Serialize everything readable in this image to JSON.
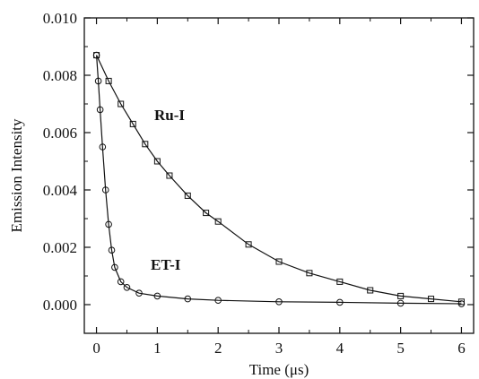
{
  "chart_data": {
    "type": "scatter",
    "title": "",
    "xlabel": "Time (μs)",
    "ylabel": "Emission Intensity",
    "xlim": [
      -0.2,
      6.2
    ],
    "ylim": [
      -0.001,
      0.01
    ],
    "x_ticks": [
      0,
      1,
      2,
      3,
      4,
      5,
      6
    ],
    "x_tick_labels": [
      "0",
      "1",
      "2",
      "3",
      "4",
      "5",
      "6"
    ],
    "y_ticks": [
      0,
      0.002,
      0.004,
      0.006,
      0.008,
      0.01
    ],
    "y_tick_labels": [
      "0.000",
      "0.002",
      "0.004",
      "0.006",
      "0.008",
      "0.010"
    ],
    "grid": false,
    "legend": "none",
    "annotations": [
      {
        "text": "Ru-I",
        "x": 0.9,
        "y": 0.0066
      },
      {
        "text": "ET-I",
        "x": 0.9,
        "y": 0.0015
      }
    ],
    "series": [
      {
        "marker": "square",
        "fit_line": true,
        "x": [
          0,
          0.2,
          0.4,
          0.6,
          0.8,
          1.0,
          1.2,
          1.5,
          1.8,
          2.0,
          2.5,
          3.0,
          3.5,
          4.0,
          4.5,
          5.0,
          5.5,
          6.0
        ],
        "y": [
          0.0087,
          0.0078,
          0.007,
          0.0063,
          0.0056,
          0.005,
          0.0045,
          0.0038,
          0.0032,
          0.0029,
          0.0021,
          0.0015,
          0.0011,
          0.0008,
          0.0005,
          0.0003,
          0.0002,
          0.0001
        ]
      },
      {
        "marker": "circle",
        "fit_line": true,
        "x": [
          0,
          0.03,
          0.06,
          0.1,
          0.15,
          0.2,
          0.25,
          0.3,
          0.4,
          0.5,
          0.7,
          1.0,
          1.5,
          2.0,
          3.0,
          4.0,
          5.0,
          6.0
        ],
        "y": [
          0.0087,
          0.0078,
          0.0068,
          0.0055,
          0.004,
          0.0028,
          0.0019,
          0.0013,
          0.0008,
          0.0006,
          0.0004,
          0.0003,
          0.0002,
          0.00015,
          0.0001,
          8e-05,
          5e-05,
          3e-05
        ]
      }
    ]
  }
}
